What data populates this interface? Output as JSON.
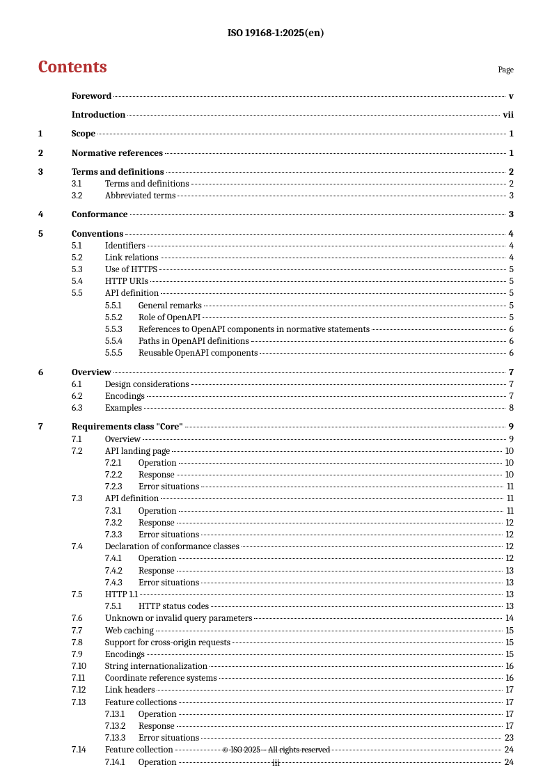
{
  "header": "ISO 19168-1:2025(en)",
  "contents_title": "Contents",
  "page_label": "Page",
  "footer": "© ISO 2025 – All rights reserved",
  "page_number": "iii",
  "colors": {
    "accent": "#b33030",
    "text": "#000000",
    "background": "#ffffff"
  },
  "toc": [
    {
      "level": 0,
      "num": "",
      "title": "Foreword",
      "page": "v",
      "bold": true,
      "spacer_after": true
    },
    {
      "level": 0,
      "num": "",
      "title": "Introduction",
      "page": "vii",
      "bold": true,
      "spacer_after": true
    },
    {
      "level": 0,
      "num": "1",
      "title": "Scope",
      "page": "1",
      "bold": true,
      "spacer_after": true
    },
    {
      "level": 0,
      "num": "2",
      "title": "Normative references",
      "page": "1",
      "bold": true,
      "spacer_after": true
    },
    {
      "level": 0,
      "num": "3",
      "title": "Terms and definitions",
      "page": "2",
      "bold": true
    },
    {
      "level": 1,
      "num": "3.1",
      "title": "Terms and definitions",
      "page": "2"
    },
    {
      "level": 1,
      "num": "3.2",
      "title": "Abbreviated terms",
      "page": "3",
      "spacer_after": true
    },
    {
      "level": 0,
      "num": "4",
      "title": "Conformance",
      "page": "3",
      "bold": true,
      "spacer_after": true
    },
    {
      "level": 0,
      "num": "5",
      "title": "Conventions",
      "page": "4",
      "bold": true
    },
    {
      "level": 1,
      "num": "5.1",
      "title": "Identifiers",
      "page": "4"
    },
    {
      "level": 1,
      "num": "5.2",
      "title": "Link relations",
      "page": "4"
    },
    {
      "level": 1,
      "num": "5.3",
      "title": "Use of HTTPS",
      "page": "5"
    },
    {
      "level": 1,
      "num": "5.4",
      "title": "HTTP URIs",
      "page": "5"
    },
    {
      "level": 1,
      "num": "5.5",
      "title": "API definition",
      "page": "5"
    },
    {
      "level": 2,
      "num": "5.5.1",
      "title": "General remarks",
      "page": "5"
    },
    {
      "level": 2,
      "num": "5.5.2",
      "title": "Role of OpenAPI",
      "page": "5"
    },
    {
      "level": 2,
      "num": "5.5.3",
      "title": "References to OpenAPI components in normative statements",
      "page": "6"
    },
    {
      "level": 2,
      "num": "5.5.4",
      "title": "Paths in OpenAPI definitions",
      "page": "6"
    },
    {
      "level": 2,
      "num": "5.5.5",
      "title": "Reusable OpenAPI components",
      "page": "6",
      "spacer_after": true
    },
    {
      "level": 0,
      "num": "6",
      "title": "Overview",
      "page": "7",
      "bold": true
    },
    {
      "level": 1,
      "num": "6.1",
      "title": "Design considerations",
      "page": "7"
    },
    {
      "level": 1,
      "num": "6.2",
      "title": "Encodings",
      "page": "7"
    },
    {
      "level": 1,
      "num": "6.3",
      "title": "Examples",
      "page": "8",
      "spacer_after": true
    },
    {
      "level": 0,
      "num": "7",
      "title": "Requirements class \"Core\"",
      "page": "9",
      "bold": true
    },
    {
      "level": 1,
      "num": "7.1",
      "title": "Overview",
      "page": "9"
    },
    {
      "level": 1,
      "num": "7.2",
      "title": "API landing page",
      "page": "10"
    },
    {
      "level": 2,
      "num": "7.2.1",
      "title": "Operation",
      "page": "10"
    },
    {
      "level": 2,
      "num": "7.2.2",
      "title": "Response",
      "page": "10"
    },
    {
      "level": 2,
      "num": "7.2.3",
      "title": "Error situations",
      "page": "11"
    },
    {
      "level": 1,
      "num": "7.3",
      "title": "API definition",
      "page": "11"
    },
    {
      "level": 2,
      "num": "7.3.1",
      "title": "Operation",
      "page": "11"
    },
    {
      "level": 2,
      "num": "7.3.2",
      "title": "Response",
      "page": "12"
    },
    {
      "level": 2,
      "num": "7.3.3",
      "title": "Error situations",
      "page": "12"
    },
    {
      "level": 1,
      "num": "7.4",
      "title": "Declaration of conformance classes",
      "page": "12"
    },
    {
      "level": 2,
      "num": "7.4.1",
      "title": "Operation",
      "page": "12"
    },
    {
      "level": 2,
      "num": "7.4.2",
      "title": "Response",
      "page": "13"
    },
    {
      "level": 2,
      "num": "7.4.3",
      "title": "Error situations",
      "page": "13"
    },
    {
      "level": 1,
      "num": "7.5",
      "title": "HTTP 1.1",
      "page": "13"
    },
    {
      "level": 2,
      "num": "7.5.1",
      "title": "HTTP status codes",
      "page": "13"
    },
    {
      "level": 1,
      "num": "7.6",
      "title": "Unknown or invalid query parameters",
      "page": "14"
    },
    {
      "level": 1,
      "num": "7.7",
      "title": "Web caching",
      "page": "15"
    },
    {
      "level": 1,
      "num": "7.8",
      "title": "Support for cross-origin requests",
      "page": "15"
    },
    {
      "level": 1,
      "num": "7.9",
      "title": "Encodings",
      "page": "15"
    },
    {
      "level": 1,
      "num": "7.10",
      "title": "String internationalization",
      "page": "16"
    },
    {
      "level": 1,
      "num": "7.11",
      "title": "Coordinate reference systems",
      "page": "16"
    },
    {
      "level": 1,
      "num": "7.12",
      "title": "Link headers",
      "page": "17"
    },
    {
      "level": 1,
      "num": "7.13",
      "title": "Feature collections",
      "page": "17"
    },
    {
      "level": 2,
      "num": "7.13.1",
      "title": "Operation",
      "page": "17"
    },
    {
      "level": 2,
      "num": "7.13.2",
      "title": "Response",
      "page": "17"
    },
    {
      "level": 2,
      "num": "7.13.3",
      "title": "Error situations",
      "page": "23"
    },
    {
      "level": 1,
      "num": "7.14",
      "title": "Feature collection",
      "page": "24"
    },
    {
      "level": 2,
      "num": "7.14.1",
      "title": "Operation",
      "page": "24"
    }
  ]
}
